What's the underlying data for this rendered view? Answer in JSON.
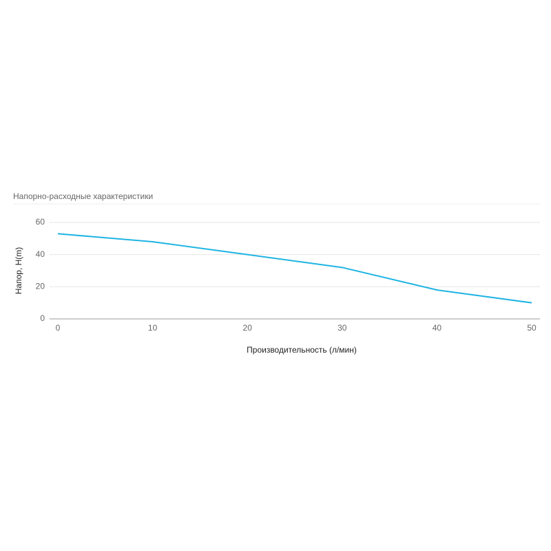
{
  "chart_data": {
    "type": "line",
    "title": "Напорно-расходные характеристики",
    "x_label": "Производительность (л/мин)",
    "y_label": "Напор, H(m)",
    "x": [
      0,
      10,
      20,
      30,
      40,
      50
    ],
    "series": [
      {
        "color": "#1eb4e2",
        "values": [
          53,
          48,
          40,
          32,
          18,
          10
        ]
      }
    ],
    "xlim": [
      0,
      50
    ],
    "xticks": [
      0,
      10,
      20,
      30,
      40,
      50
    ],
    "ylim": [
      0,
      60
    ],
    "yticks": [
      0,
      20,
      40,
      60
    ],
    "grid": true
  }
}
